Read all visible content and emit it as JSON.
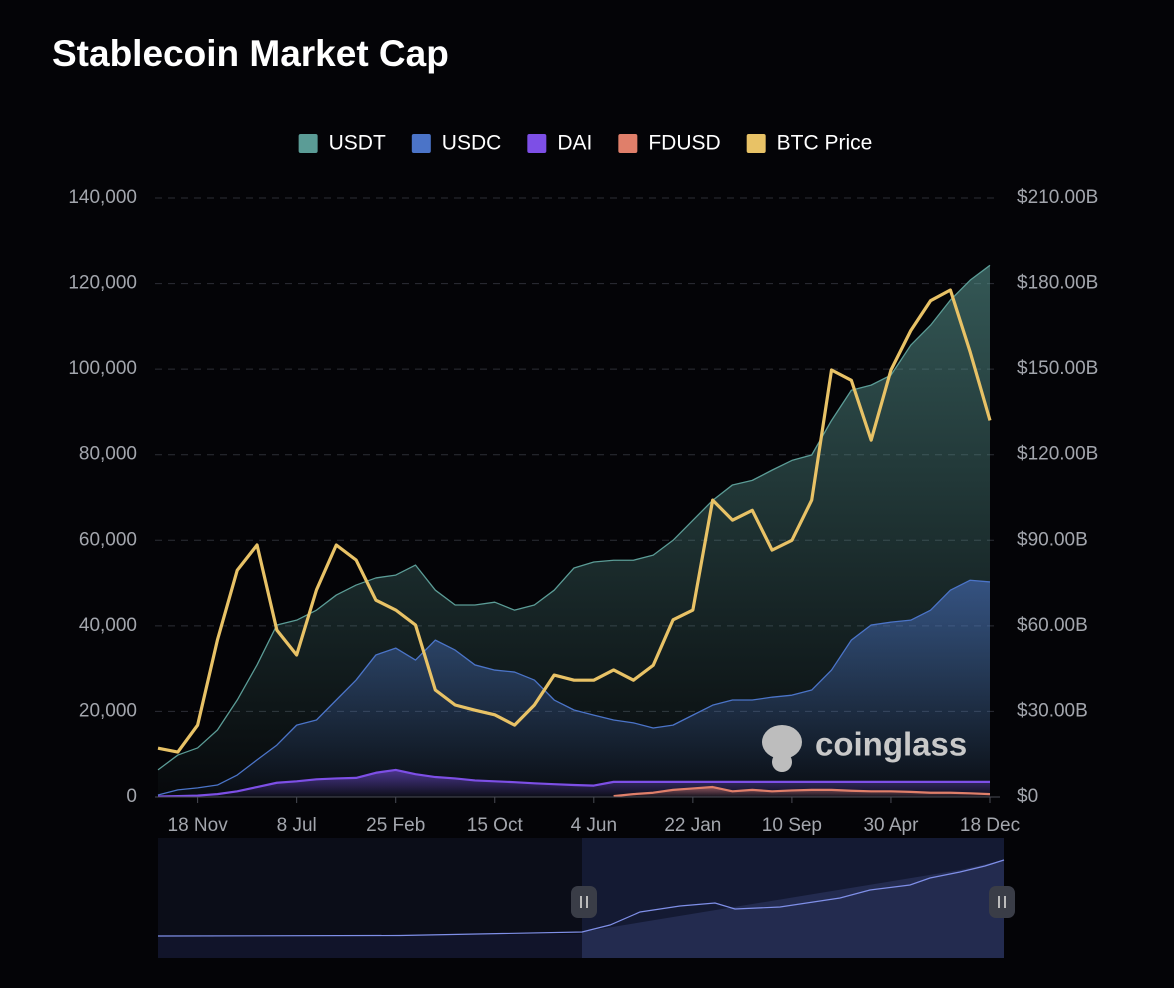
{
  "chart_data": {
    "type": "area",
    "title": "Stablecoin Market Cap",
    "watermark": "coinglass",
    "categories": [
      null,
      null,
      "18 Nov",
      null,
      null,
      null,
      null,
      "8 Jul",
      null,
      null,
      null,
      null,
      "25 Feb",
      null,
      null,
      null,
      null,
      "15 Oct",
      null,
      null,
      null,
      null,
      "4 Jun",
      null,
      null,
      null,
      null,
      "22 Jan",
      null,
      null,
      null,
      null,
      "10 Sep",
      null,
      null,
      null,
      null,
      "30 Apr",
      null,
      null,
      null,
      null,
      "18 Dec"
    ],
    "series": [
      {
        "name": "USDT",
        "color": "#5b9c96",
        "axis": "y2",
        "values": [
          9.5,
          14.7,
          17.2,
          23.5,
          34,
          46.3,
          60.3,
          62,
          65.5,
          70.8,
          74.3,
          76.8,
          77.8,
          81.3,
          72.5,
          67.3,
          67.3,
          68.3,
          65.5,
          67.3,
          72.5,
          80.3,
          82.4,
          83,
          83,
          84.8,
          90,
          97,
          104,
          109.4,
          111,
          114.6,
          118,
          119.9,
          132,
          142.6,
          144.4,
          147.9,
          158.4,
          165.4,
          174.2,
          181.2,
          186.4
        ]
      },
      {
        "name": "USDC",
        "color": "#4b74c8",
        "axis": "y2",
        "values": [
          0.7,
          2.5,
          3.2,
          4.2,
          7.7,
          13,
          18.2,
          25.2,
          27,
          34,
          41,
          49.8,
          52.2,
          48,
          55,
          51.5,
          46.3,
          44.5,
          43.8,
          41,
          34,
          30.5,
          28.7,
          27,
          26,
          24.2,
          25.2,
          28.7,
          32.2,
          34,
          34,
          35,
          35.7,
          37.5,
          44.5,
          55,
          60.3,
          61.3,
          62,
          65.5,
          72.5,
          76,
          75.4
        ]
      },
      {
        "name": "DAI",
        "color": "#7d4fe6",
        "axis": "y2",
        "values": [
          0.2,
          0.3,
          0.5,
          1.0,
          2.0,
          3.5,
          5.0,
          5.5,
          6.2,
          6.5,
          6.7,
          8.5,
          9.5,
          8.0,
          7.0,
          6.5,
          5.8,
          5.5,
          5.2,
          4.8,
          4.5,
          4.2,
          4.0,
          5.3,
          5.3,
          5.3,
          5.3,
          5.3,
          5.3,
          5.3,
          5.3,
          5.3,
          5.3,
          5.3,
          5.3,
          5.3,
          5.3,
          5.3,
          5.3,
          5.3,
          5.3,
          5.3,
          5.3
        ]
      },
      {
        "name": "FDUSD",
        "color": "#e07f6a",
        "axis": "y2",
        "values": [
          null,
          null,
          null,
          null,
          null,
          null,
          null,
          null,
          null,
          null,
          null,
          null,
          null,
          null,
          null,
          null,
          null,
          null,
          null,
          null,
          null,
          null,
          null,
          0.3,
          1.0,
          1.5,
          2.5,
          3.0,
          3.5,
          2.0,
          2.5,
          2.0,
          2.3,
          2.5,
          2.5,
          2.2,
          2.0,
          2.0,
          1.8,
          1.5,
          1.5,
          1.3,
          1.0
        ]
      },
      {
        "name": "BTC Price",
        "color": "#e8c266",
        "axis": "y",
        "type": "line",
        "values": [
          11400,
          10500,
          16800,
          36700,
          53000,
          58900,
          39000,
          33200,
          48400,
          58900,
          55400,
          46000,
          43700,
          40200,
          25000,
          21500,
          20300,
          19200,
          16800,
          21500,
          28500,
          27300,
          27300,
          29700,
          27300,
          30800,
          41400,
          43700,
          69400,
          64700,
          67000,
          57700,
          60000,
          69400,
          99800,
          97400,
          83400,
          99800,
          109000,
          116000,
          118500,
          104000,
          88000
        ]
      }
    ],
    "ylim": [
      0,
      140000
    ],
    "yticks": [
      0,
      {
        "value": 20000,
        "label": "20,000"
      },
      {
        "value": 40000,
        "label": "40,000"
      },
      {
        "value": 60000,
        "label": "60,000"
      },
      {
        "value": 80000,
        "label": "80,000"
      },
      {
        "value": 100000,
        "label": "100,000"
      },
      {
        "value": 120000,
        "label": "120,000"
      },
      {
        "value": 140000,
        "label": "140,000"
      }
    ],
    "y2lim": [
      0,
      210
    ],
    "y2ticks": [
      {
        "value": 0,
        "label": "$0"
      },
      {
        "value": 30,
        "label": "$30.00B"
      },
      {
        "value": 60,
        "label": "$60.00B"
      },
      {
        "value": 90,
        "label": "$90.00B"
      },
      {
        "value": 120,
        "label": "$120.00B"
      },
      {
        "value": 150,
        "label": "$150.00B"
      },
      {
        "value": 180,
        "label": "$180.00B"
      },
      {
        "value": 210,
        "label": "$210.00B"
      }
    ],
    "grid": true,
    "legend": "top"
  }
}
